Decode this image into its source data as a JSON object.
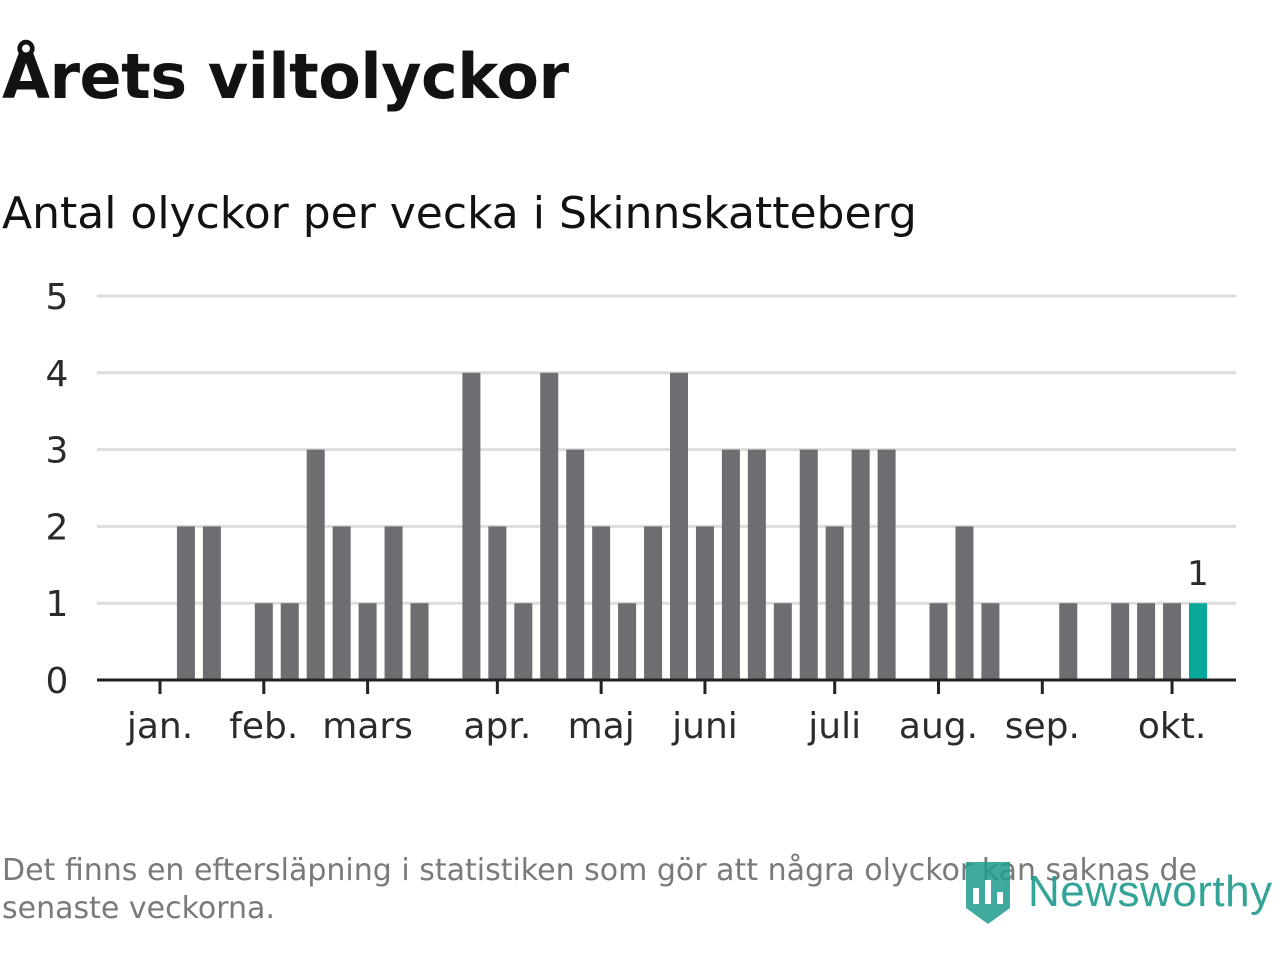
{
  "title": "Årets viltolyckor",
  "subtitle": "Antal olyckor per vecka i Skinnskatteberg",
  "footnote": "Det finns en eftersläpning i statistiken som gör att några olyckor kan saknas de senaste veckorna.",
  "brand": {
    "name": "Newsworthy",
    "icon": "newsworthy-logo-icon"
  },
  "colors": {
    "bar": "#6e6d72",
    "highlight": "#08a89a",
    "grid": "#dddddd",
    "axis": "#222222",
    "text": "#2b2b2b"
  },
  "chart_data": {
    "type": "bar",
    "title": "Antal olyckor per vecka i Skinnskatteberg",
    "xlabel": "",
    "ylabel": "",
    "ylim": [
      0,
      5
    ],
    "yticks": [
      0,
      1,
      2,
      3,
      4,
      5
    ],
    "weeks": [
      1,
      2,
      3,
      4,
      5,
      6,
      7,
      8,
      9,
      10,
      11,
      12,
      13,
      14,
      15,
      16,
      17,
      18,
      19,
      20,
      21,
      22,
      23,
      24,
      25,
      26,
      27,
      28,
      29,
      30,
      31,
      32,
      33,
      34,
      35,
      36,
      37,
      38,
      39,
      40,
      41,
      42
    ],
    "values": [
      0,
      2,
      2,
      0,
      1,
      1,
      3,
      2,
      1,
      2,
      1,
      0,
      4,
      2,
      1,
      4,
      3,
      2,
      1,
      2,
      4,
      2,
      3,
      3,
      1,
      3,
      2,
      3,
      3,
      0,
      1,
      2,
      1,
      0,
      0,
      1,
      0,
      1,
      1,
      1,
      1,
      0
    ],
    "highlight_week": 41,
    "highlight_label": "1",
    "month_ticks": [
      {
        "label": "jan.",
        "week": 1
      },
      {
        "label": "feb.",
        "week": 5
      },
      {
        "label": "mars",
        "week": 9
      },
      {
        "label": "apr.",
        "week": 14
      },
      {
        "label": "maj",
        "week": 18
      },
      {
        "label": "juni",
        "week": 22
      },
      {
        "label": "juli",
        "week": 27
      },
      {
        "label": "aug.",
        "week": 31
      },
      {
        "label": "sep.",
        "week": 35
      },
      {
        "label": "okt.",
        "week": 40
      }
    ]
  }
}
